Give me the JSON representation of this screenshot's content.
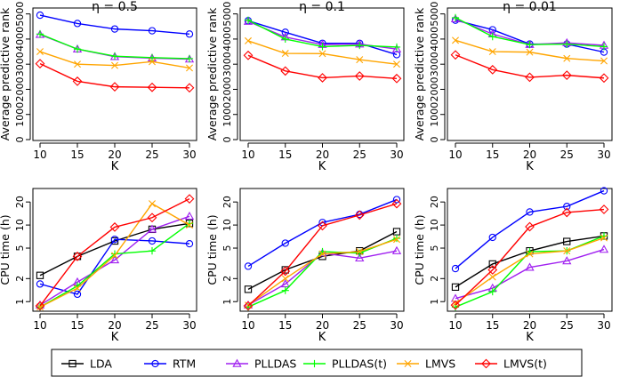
{
  "chart_data": [
    {
      "type": "line",
      "title": "η = 0.5",
      "xlabel": "K",
      "ylabel": "Average predictive rank",
      "x": [
        10,
        15,
        20,
        25,
        30
      ],
      "xticks": [
        10,
        15,
        20,
        25,
        30
      ],
      "yscale": "linear",
      "ylim": [
        0,
        5200
      ],
      "yticks": [
        0,
        1000,
        2000,
        3000,
        4000,
        5000
      ],
      "series": [
        {
          "name": "LDA",
          "values": [
            null,
            null,
            null,
            null,
            null
          ]
        },
        {
          "name": "RTM",
          "values": [
            4950,
            4620,
            4400,
            4330,
            4200
          ]
        },
        {
          "name": "PLLDAS",
          "values": [
            4180,
            3600,
            3300,
            3240,
            3200
          ]
        },
        {
          "name": "PLLDAS(t)",
          "values": [
            4200,
            3600,
            3320,
            3260,
            3220
          ]
        },
        {
          "name": "LMVS",
          "values": [
            3500,
            3000,
            2950,
            3100,
            2850
          ]
        },
        {
          "name": "LMVS(t)",
          "values": [
            3020,
            2320,
            2100,
            2080,
            2060
          ]
        }
      ]
    },
    {
      "type": "line",
      "title": "η = 0.1",
      "xlabel": "K",
      "ylabel": "Average predictive rank",
      "x": [
        10,
        15,
        20,
        25,
        30
      ],
      "xticks": [
        10,
        15,
        20,
        25,
        30
      ],
      "yscale": "linear",
      "ylim": [
        0,
        5200
      ],
      "yticks": [
        0,
        1000,
        2000,
        3000,
        4000,
        5000
      ],
      "series": [
        {
          "name": "LDA",
          "values": [
            null,
            null,
            null,
            null,
            null
          ]
        },
        {
          "name": "RTM",
          "values": [
            4730,
            4270,
            3830,
            3830,
            3380
          ]
        },
        {
          "name": "PLLDAS",
          "values": [
            4700,
            4080,
            3780,
            3800,
            3600
          ]
        },
        {
          "name": "PLLDAS(t)",
          "values": [
            4750,
            4000,
            3700,
            3750,
            3680
          ]
        },
        {
          "name": "LMVS",
          "values": [
            3930,
            3430,
            3420,
            3180,
            3000
          ]
        },
        {
          "name": "LMVS(t)",
          "values": [
            3350,
            2730,
            2460,
            2530,
            2430
          ]
        }
      ]
    },
    {
      "type": "line",
      "title": "η = 0.01",
      "xlabel": "K",
      "ylabel": "Average predictive rank",
      "x": [
        10,
        15,
        20,
        25,
        30
      ],
      "xticks": [
        10,
        15,
        20,
        25,
        30
      ],
      "yscale": "linear",
      "ylim": [
        0,
        5200
      ],
      "yticks": [
        0,
        1000,
        2000,
        3000,
        4000,
        5000
      ],
      "series": [
        {
          "name": "LDA",
          "values": [
            null,
            null,
            null,
            null,
            null
          ]
        },
        {
          "name": "RTM",
          "values": [
            4750,
            4370,
            3800,
            3800,
            3480
          ]
        },
        {
          "name": "PLLDAS",
          "values": [
            4800,
            4200,
            3780,
            3850,
            3750
          ]
        },
        {
          "name": "PLLDAS(t)",
          "values": [
            4850,
            4100,
            3780,
            3800,
            3700
          ]
        },
        {
          "name": "LMVS",
          "values": [
            3950,
            3500,
            3480,
            3230,
            3130
          ]
        },
        {
          "name": "LMVS(t)",
          "values": [
            3370,
            2780,
            2480,
            2560,
            2450
          ]
        }
      ]
    },
    {
      "type": "line",
      "title": "",
      "xlabel": "K",
      "ylabel": "CPU time (h)",
      "x": [
        10,
        15,
        20,
        25,
        30
      ],
      "xticks": [
        10,
        15,
        20,
        25,
        30
      ],
      "yscale": "log",
      "ylim": [
        0.75,
        30
      ],
      "yticks": [
        1,
        2,
        5,
        10,
        20
      ],
      "series": [
        {
          "name": "LDA",
          "values": [
            2.2,
            3.9,
            6.2,
            8.8,
            10.5
          ]
        },
        {
          "name": "RTM",
          "values": [
            1.7,
            1.25,
            6.5,
            6.2,
            5.7
          ]
        },
        {
          "name": "PLLDAS",
          "values": [
            0.9,
            1.8,
            3.5,
            8.8,
            13
          ]
        },
        {
          "name": "PLLDAS(t)",
          "values": [
            0.85,
            1.6,
            4.2,
            4.6,
            10.5
          ]
        },
        {
          "name": "LMVS",
          "values": [
            0.85,
            1.5,
            4.0,
            19,
            10
          ]
        },
        {
          "name": "LMVS(t)",
          "values": [
            0.88,
            3.9,
            9.4,
            12.5,
            22
          ]
        }
      ]
    },
    {
      "type": "line",
      "title": "",
      "xlabel": "K",
      "ylabel": "CPU time (h)",
      "x": [
        10,
        15,
        20,
        25,
        30
      ],
      "xticks": [
        10,
        15,
        20,
        25,
        30
      ],
      "yscale": "log",
      "ylim": [
        0.75,
        30
      ],
      "yticks": [
        1,
        2,
        5,
        10,
        20
      ],
      "series": [
        {
          "name": "LDA",
          "values": [
            1.45,
            2.6,
            3.9,
            4.6,
            8.2
          ]
        },
        {
          "name": "RTM",
          "values": [
            2.9,
            5.8,
            10.8,
            13.8,
            21.5
          ]
        },
        {
          "name": "PLLDAS",
          "values": [
            0.9,
            1.7,
            4.3,
            3.7,
            4.6
          ]
        },
        {
          "name": "PLLDAS(t)",
          "values": [
            0.85,
            1.4,
            4.5,
            4.3,
            6.7
          ]
        },
        {
          "name": "LMVS",
          "values": [
            0.9,
            2.0,
            4.2,
            4.5,
            6.5
          ]
        },
        {
          "name": "LMVS(t)",
          "values": [
            0.88,
            2.5,
            9.8,
            13.5,
            19
          ]
        }
      ]
    },
    {
      "type": "line",
      "title": "",
      "xlabel": "K",
      "ylabel": "CPU time (h)",
      "x": [
        10,
        15,
        20,
        25,
        30
      ],
      "xticks": [
        10,
        15,
        20,
        25,
        30
      ],
      "yscale": "log",
      "ylim": [
        0.75,
        30
      ],
      "yticks": [
        1,
        2,
        5,
        10,
        20
      ],
      "series": [
        {
          "name": "LDA",
          "values": [
            1.55,
            3.1,
            4.6,
            6.1,
            7.2
          ]
        },
        {
          "name": "RTM",
          "values": [
            2.7,
            6.9,
            14.8,
            17.5,
            28
          ]
        },
        {
          "name": "PLLDAS",
          "values": [
            1.1,
            1.5,
            2.8,
            3.4,
            4.8
          ]
        },
        {
          "name": "PLLDAS(t)",
          "values": [
            0.85,
            1.35,
            4.5,
            4.6,
            7.2
          ]
        },
        {
          "name": "LMVS",
          "values": [
            0.95,
            2.1,
            4.2,
            4.6,
            6.8
          ]
        },
        {
          "name": "LMVS(t)",
          "values": [
            0.9,
            2.6,
            9.5,
            14.6,
            16
          ]
        }
      ]
    }
  ],
  "legend": {
    "items": [
      {
        "label": "LDA",
        "color": "#000000",
        "marker": "square"
      },
      {
        "label": "RTM",
        "color": "#0000ff",
        "marker": "circle"
      },
      {
        "label": "PLLDAS",
        "color": "#a020f0",
        "marker": "triangle"
      },
      {
        "label": "PLLDAS(t)",
        "color": "#00ff00",
        "marker": "plus"
      },
      {
        "label": "LMVS",
        "color": "#ffa500",
        "marker": "cross"
      },
      {
        "label": "LMVS(t)",
        "color": "#ff0000",
        "marker": "diamond"
      }
    ]
  }
}
